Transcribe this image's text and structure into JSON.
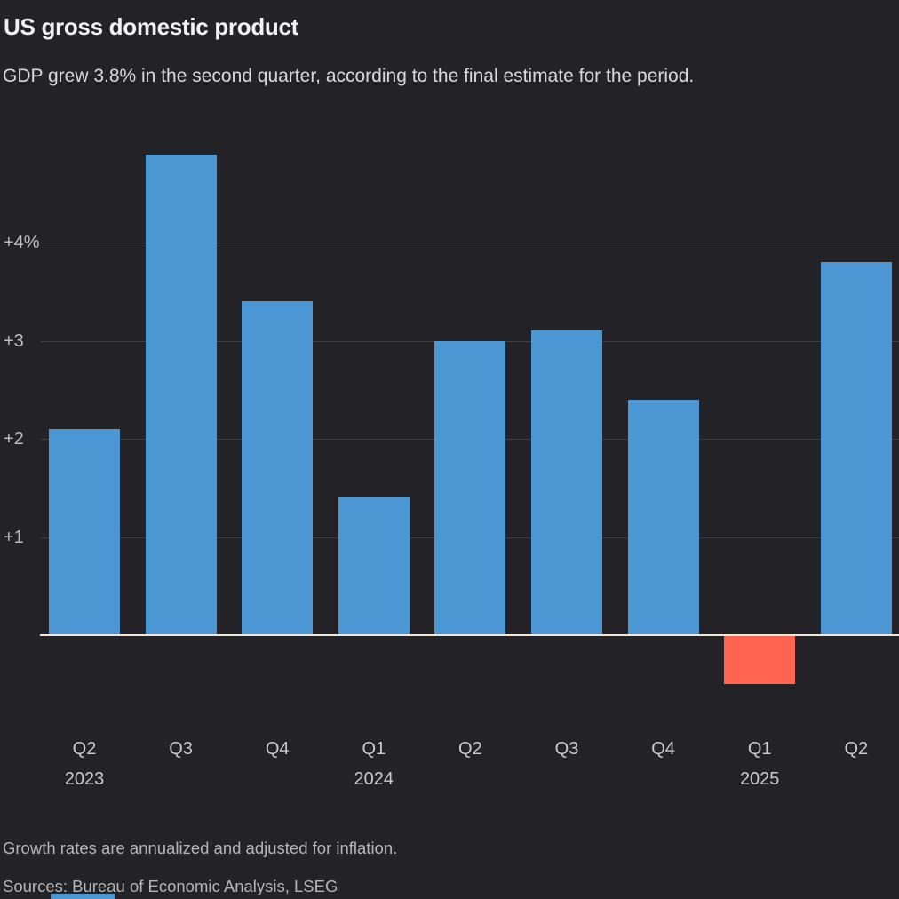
{
  "chart_data": {
    "type": "bar",
    "title": "US gross domestic product",
    "subtitle": "GDP grew 3.8% in the second quarter, according to the final estimate for the period.",
    "categories": [
      "Q2",
      "Q3",
      "Q4",
      "Q1",
      "Q2",
      "Q3",
      "Q4",
      "Q1",
      "Q2"
    ],
    "year_markers": [
      {
        "index": 0,
        "label": "2023"
      },
      {
        "index": 3,
        "label": "2024"
      },
      {
        "index": 7,
        "label": "2025"
      }
    ],
    "values": [
      2.1,
      4.9,
      3.4,
      1.4,
      3.0,
      3.1,
      2.4,
      -0.5,
      3.8
    ],
    "unit": "%",
    "xlabel": "",
    "ylabel": "",
    "yticks": [
      {
        "value": 4,
        "label": "+4%"
      },
      {
        "value": 3,
        "label": "+3"
      },
      {
        "value": 2,
        "label": "+2"
      },
      {
        "value": 1,
        "label": "+1"
      }
    ],
    "ylim": [
      -0.95,
      5.02
    ],
    "grid": true,
    "legend": "none",
    "bar_color": "#4d96d4",
    "negative_bar_color": "#ff6450",
    "background_color": "#232327",
    "zero_line_color": "#efe8dc",
    "footnote": "Growth rates are annualized and adjusted for inflation.",
    "sources": "Sources: Bureau of Economic Analysis, LSEG"
  }
}
